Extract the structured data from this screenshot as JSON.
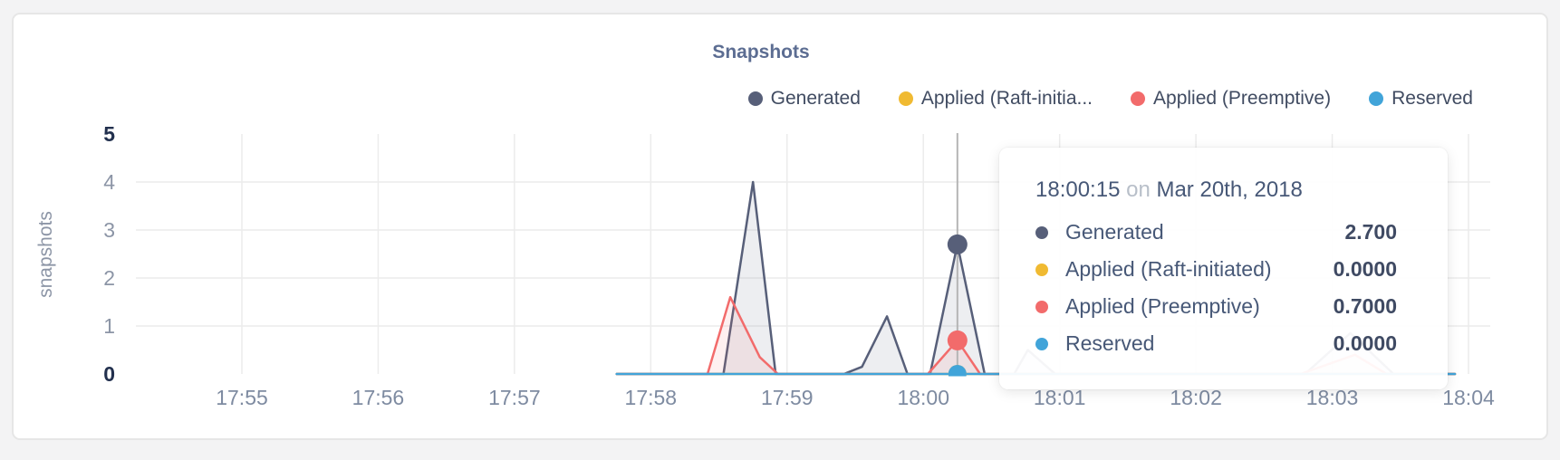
{
  "card": {
    "title": "Snapshots"
  },
  "chart": {
    "title": "Snapshots",
    "legend": [
      {
        "key": "generated",
        "label": "Generated",
        "color": "#575f79"
      },
      {
        "key": "raft",
        "label": "Applied (Raft-initia...",
        "color": "#f0ba32"
      },
      {
        "key": "preemptive",
        "label": "Applied (Preemptive)",
        "color": "#f26b6b"
      },
      {
        "key": "reserved",
        "label": "Reserved",
        "color": "#41a4d9"
      }
    ]
  },
  "chart_data": {
    "type": "area",
    "title": "Snapshots",
    "xlabel": "",
    "ylabel": "snapshots",
    "x_ticks": [
      "17:55",
      "17:56",
      "17:57",
      "17:58",
      "17:59",
      "18:00",
      "18:01",
      "18:02",
      "18:03",
      "18:04"
    ],
    "y_ticks": [
      0,
      1,
      2,
      3,
      4,
      5
    ],
    "ylim": [
      0,
      5
    ],
    "x_domain_seconds_from_1755": [
      0,
      540
    ],
    "grid": true,
    "legend_position": "top-right",
    "series": [
      {
        "name": "Generated",
        "color": "#575f79",
        "fill": "rgba(90,98,128,0.11)",
        "points": [
          [
            165,
            0
          ],
          [
            212,
            0
          ],
          [
            225,
            4.0
          ],
          [
            235,
            0
          ],
          [
            265,
            0
          ],
          [
            273,
            0.15
          ],
          [
            284,
            1.2
          ],
          [
            293,
            0
          ],
          [
            303,
            0
          ],
          [
            315,
            2.7
          ],
          [
            327,
            0
          ],
          [
            340,
            0
          ],
          [
            346,
            0.5
          ],
          [
            358,
            0
          ],
          [
            468,
            0
          ],
          [
            488,
            0.85
          ],
          [
            507,
            0
          ],
          [
            534,
            0
          ]
        ]
      },
      {
        "name": "Applied (Raft-initiated)",
        "color": "#f0ba32",
        "fill": "rgba(240,186,50,0.10)",
        "points": [
          [
            165,
            0
          ],
          [
            534,
            0
          ]
        ]
      },
      {
        "name": "Applied (Preemptive)",
        "color": "#f26b6b",
        "fill": "rgba(242,107,107,0.10)",
        "points": [
          [
            165,
            0
          ],
          [
            205,
            0
          ],
          [
            215,
            1.6
          ],
          [
            228,
            0.35
          ],
          [
            236,
            0
          ],
          [
            302,
            0
          ],
          [
            315,
            0.7
          ],
          [
            325,
            0
          ],
          [
            466,
            0
          ],
          [
            490,
            0.4
          ],
          [
            504,
            0
          ],
          [
            534,
            0
          ]
        ]
      },
      {
        "name": "Reserved",
        "color": "#41a4d9",
        "fill": "none",
        "points": [
          [
            165,
            0
          ],
          [
            534,
            0
          ]
        ]
      }
    ],
    "hover": {
      "t_seconds": 315,
      "time_label": "18:00:15",
      "points": [
        {
          "series": "generated",
          "value": 2.7,
          "color": "#575f79",
          "r": 11
        },
        {
          "series": "preemptive",
          "value": 0.7,
          "color": "#f26b6b",
          "r": 11
        },
        {
          "series": "raft",
          "value": 0.0,
          "color": "#f0ba32",
          "r": 10
        },
        {
          "series": "reserved",
          "value": 0.0,
          "color": "#41a4d9",
          "r": 10
        }
      ]
    }
  },
  "tooltip": {
    "time": "18:00:15",
    "separator": "on",
    "date": "Mar 20th, 2018",
    "rows": [
      {
        "key": "generated",
        "label": "Generated",
        "value": "2.700",
        "color": "#575f79"
      },
      {
        "key": "raft",
        "label": "Applied (Raft-initiated)",
        "value": "0.0000",
        "color": "#f0ba32"
      },
      {
        "key": "preemptive",
        "label": "Applied (Preemptive)",
        "value": "0.7000",
        "color": "#f26b6b"
      },
      {
        "key": "reserved",
        "label": "Reserved",
        "value": "0.0000",
        "color": "#41a4d9"
      }
    ]
  }
}
